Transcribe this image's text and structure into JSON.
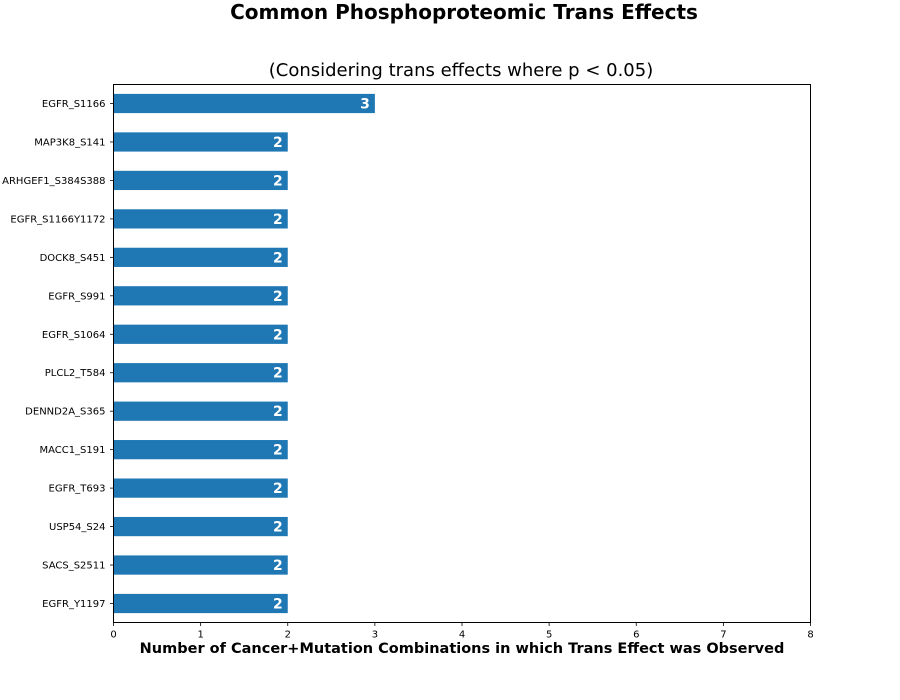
{
  "chart_data": {
    "type": "bar",
    "orientation": "horizontal",
    "title": "Common Phosphoproteomic Trans Effects",
    "subtitle": "(Considering trans effects where p < 0.05)",
    "xlabel": "Number of Cancer+Mutation Combinations in which Trans Effect was Observed",
    "ylabel": "",
    "categories": [
      "EGFR_S1166",
      "MAP3K8_S141",
      "ARHGEF1_S384S388",
      "EGFR_S1166Y1172",
      "DOCK8_S451",
      "EGFR_S991",
      "EGFR_S1064",
      "PLCL2_T584",
      "DENND2A_S365",
      "MACC1_S191",
      "EGFR_T693",
      "USP54_S24",
      "SACS_S2511",
      "EGFR_Y1197"
    ],
    "values": [
      3,
      2,
      2,
      2,
      2,
      2,
      2,
      2,
      2,
      2,
      2,
      2,
      2,
      2
    ],
    "data_labels": [
      "3",
      "2",
      "2",
      "2",
      "2",
      "2",
      "2",
      "2",
      "2",
      "2",
      "2",
      "2",
      "2",
      "2"
    ],
    "xlim": [
      0,
      8
    ],
    "xticks": [
      "0",
      "1",
      "2",
      "3",
      "4",
      "5",
      "6",
      "7",
      "8"
    ],
    "grid": false,
    "bar_color": "#1f77b4",
    "label_color": "#ffffff"
  }
}
